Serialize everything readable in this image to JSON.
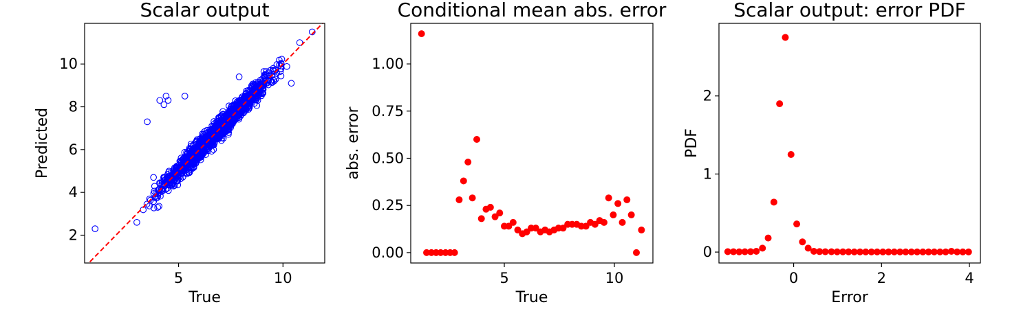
{
  "chart_data": [
    {
      "type": "scatter",
      "title": "Scalar output",
      "xlabel": "True",
      "ylabel": "Predicted",
      "xlim": [
        0.5,
        12.0
      ],
      "ylim": [
        0.7,
        11.9
      ],
      "xticks": [
        5,
        10
      ],
      "yticks": [
        2,
        4,
        6,
        8,
        10
      ],
      "grid": false,
      "marker": "open-circle",
      "marker_color": "#0000ff",
      "reference_line": {
        "from": [
          0.5,
          0.5
        ],
        "to": [
          12.0,
          12.0
        ],
        "style": "dashed",
        "color": "#ff0000"
      },
      "outliers": [
        [
          1.0,
          2.3
        ],
        [
          3.0,
          2.6
        ],
        [
          3.5,
          7.3
        ],
        [
          3.8,
          4.7
        ],
        [
          4.1,
          8.3
        ],
        [
          4.3,
          8.1
        ],
        [
          4.4,
          8.5
        ],
        [
          4.5,
          8.3
        ],
        [
          5.3,
          8.5
        ],
        [
          4.0,
          3.3
        ],
        [
          5.9,
          5.7
        ],
        [
          7.9,
          9.4
        ],
        [
          10.4,
          9.1
        ],
        [
          10.8,
          11.0
        ],
        [
          11.4,
          11.5
        ]
      ],
      "cloud": {
        "x_range": [
          3.0,
          10.6
        ],
        "spread": 0.45,
        "count": 1600
      }
    },
    {
      "type": "scatter",
      "title": "Conditional mean abs. error",
      "xlabel": "True",
      "ylabel": "abs. error",
      "xlim": [
        0.75,
        11.75
      ],
      "ylim": [
        -0.055,
        1.215
      ],
      "xticks": [
        5,
        10
      ],
      "yticks": [
        0.0,
        0.25,
        0.5,
        0.75,
        1.0
      ],
      "ytick_labels": [
        "0.00",
        "0.25",
        "0.50",
        "0.75",
        "1.00"
      ],
      "grid": false,
      "marker": "filled-circle",
      "marker_color": "#ff0000",
      "x": [
        1.24,
        1.47,
        1.69,
        1.9,
        2.11,
        2.33,
        2.54,
        2.74,
        2.95,
        3.15,
        3.35,
        3.55,
        3.75,
        3.96,
        4.17,
        4.37,
        4.58,
        4.79,
        5.0,
        5.2,
        5.4,
        5.61,
        5.82,
        6.02,
        6.22,
        6.43,
        6.64,
        6.85,
        7.05,
        7.26,
        7.46,
        7.67,
        7.88,
        8.08,
        8.29,
        8.5,
        8.71,
        8.91,
        9.12,
        9.33,
        9.53,
        9.74,
        9.95,
        10.16,
        10.36,
        10.57,
        10.77,
        11.0,
        11.23
      ],
      "y": [
        1.16,
        0.0,
        0.0,
        0.0,
        0.0,
        0.0,
        0.0,
        0.0,
        0.28,
        0.38,
        0.48,
        0.29,
        0.6,
        0.18,
        0.23,
        0.24,
        0.19,
        0.21,
        0.14,
        0.14,
        0.16,
        0.12,
        0.1,
        0.11,
        0.13,
        0.13,
        0.11,
        0.12,
        0.11,
        0.12,
        0.13,
        0.13,
        0.15,
        0.15,
        0.15,
        0.14,
        0.14,
        0.16,
        0.15,
        0.17,
        0.16,
        0.29,
        0.2,
        0.26,
        0.16,
        0.28,
        0.2,
        0.0,
        0.12
      ]
    },
    {
      "type": "scatter",
      "title": "Scalar output: error PDF",
      "xlabel": "Error",
      "ylabel": "PDF",
      "xlim": [
        -1.7,
        4.25
      ],
      "ylim": [
        -0.14,
        2.93
      ],
      "xticks": [
        0,
        2,
        4
      ],
      "yticks": [
        0,
        1,
        2
      ],
      "grid": false,
      "marker": "filled-circle",
      "marker_color": "#ff0000",
      "x": [
        -1.5,
        -1.37,
        -1.24,
        -1.11,
        -0.98,
        -0.85,
        -0.71,
        -0.58,
        -0.45,
        -0.32,
        -0.19,
        -0.06,
        0.07,
        0.2,
        0.33,
        0.46,
        0.59,
        0.72,
        0.86,
        0.99,
        1.12,
        1.25,
        1.38,
        1.51,
        1.64,
        1.77,
        1.9,
        2.03,
        2.16,
        2.29,
        2.42,
        2.55,
        2.68,
        2.81,
        2.94,
        3.07,
        3.2,
        3.33,
        3.46,
        3.59,
        3.72,
        3.85,
        3.98
      ],
      "y": [
        0.005,
        0.004,
        0.003,
        0.004,
        0.005,
        0.01,
        0.05,
        0.18,
        0.64,
        1.9,
        2.75,
        1.25,
        0.36,
        0.13,
        0.05,
        0.01,
        0.006,
        0.004,
        0.004,
        0.003,
        0.003,
        0.003,
        0.002,
        0.002,
        0.002,
        0.002,
        0.002,
        0.002,
        0.002,
        0.002,
        0.002,
        0.002,
        0.002,
        0.002,
        0.002,
        0.002,
        0.002,
        0.002,
        0.002,
        0.01,
        0.002,
        0.002,
        0.002
      ]
    }
  ]
}
